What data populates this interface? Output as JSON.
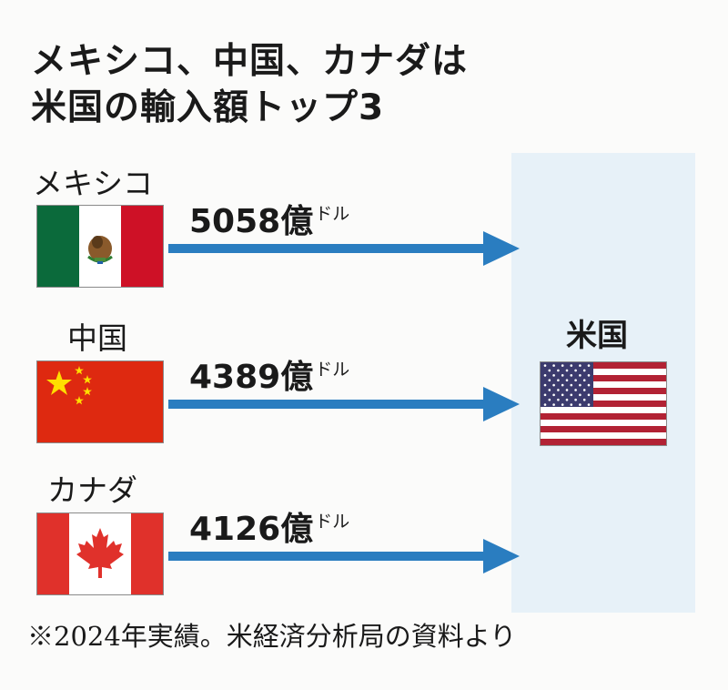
{
  "title": {
    "line1": "メキシコ、中国、カナダは",
    "line2": "米国の輸入額トップ3"
  },
  "destination": {
    "label": "米国"
  },
  "unit": "億",
  "unit_small": "ドル",
  "footnote": "※2024年実績。米経済分析局の資料より",
  "colors": {
    "arrow": "#2a7dc0",
    "panel": "#e7f1f8",
    "mexico_green": "#0b6a3b",
    "mexico_red": "#ce1126",
    "china_red": "#de2910",
    "china_star": "#ffde00",
    "canada_red": "#e0312b",
    "us_red": "#b22234",
    "us_blue": "#3c3b6e"
  },
  "chart_data": {
    "type": "bar",
    "categories": [
      "メキシコ",
      "中国",
      "カナダ"
    ],
    "values": [
      5058,
      4389,
      4126
    ],
    "value_labels": [
      "5058",
      "4389",
      "4126"
    ],
    "target": "米国"
  }
}
